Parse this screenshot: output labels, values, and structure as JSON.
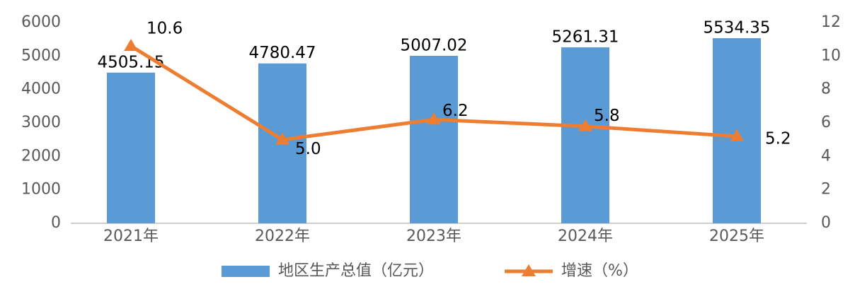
{
  "chart_data": {
    "type": "bar-line",
    "categories": [
      "2021年",
      "2022年",
      "2023年",
      "2024年",
      "2025年"
    ],
    "series": [
      {
        "name": "地区生产总值（亿元）",
        "type": "bar",
        "color": "#5b9bd5",
        "values": [
          4505.15,
          4780.47,
          5007.02,
          5261.31,
          5534.35
        ]
      },
      {
        "name": "增速（%）",
        "type": "line",
        "axis": "y2",
        "color": "#ed7d31",
        "values": [
          10.6,
          5.0,
          6.2,
          5.8,
          5.2
        ],
        "value_labels": [
          "10.6",
          "5.0",
          "6.2",
          "5.8",
          "5.2"
        ]
      }
    ],
    "ylim": [
      0,
      6000
    ],
    "yticks": [
      0,
      1000,
      2000,
      3000,
      4000,
      5000,
      6000
    ],
    "y2lim": [
      0,
      12
    ],
    "y2ticks": [
      0,
      2,
      4,
      6,
      8,
      10,
      12
    ],
    "grid": false,
    "legend": "bottom"
  }
}
